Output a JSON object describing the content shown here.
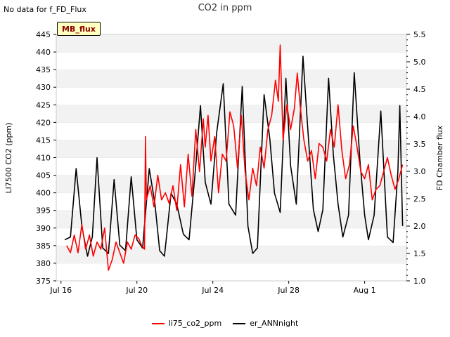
{
  "no_data_text": "No data for f_FD_Flux",
  "badge_label": "MB_flux",
  "chart_data": {
    "type": "line",
    "title": "CO2 in ppm",
    "ylabel_left": "LI7500 CO2 (ppm)",
    "ylabel_right": "FD Chamber flux",
    "ylim_left": [
      375,
      445
    ],
    "ylim_right": [
      1.0,
      5.5
    ],
    "xlim_days": [
      15.75,
      34.2
    ],
    "y_ticks_left": [
      375,
      380,
      385,
      390,
      395,
      400,
      405,
      410,
      415,
      420,
      425,
      430,
      435,
      440,
      445
    ],
    "y_ticks_right": [
      "1.0",
      "1.5",
      "2.0",
      "2.5",
      "3.0",
      "3.5",
      "4.0",
      "4.5",
      "5.0",
      "5.5"
    ],
    "x_ticks": [
      {
        "label": "Jul 16",
        "day": 16
      },
      {
        "label": "Jul 20",
        "day": 20
      },
      {
        "label": "Jul 24",
        "day": 24
      },
      {
        "label": "Jul 28",
        "day": 28
      },
      {
        "label": "Aug 1",
        "day": 32
      }
    ],
    "series": [
      {
        "name": "li75_co2_ppm",
        "color": "#ff0000",
        "points": [
          [
            16.3,
            385
          ],
          [
            16.5,
            383
          ],
          [
            16.7,
            388
          ],
          [
            16.9,
            383
          ],
          [
            17.1,
            391
          ],
          [
            17.3,
            384
          ],
          [
            17.5,
            388
          ],
          [
            17.7,
            382
          ],
          [
            17.9,
            386
          ],
          [
            18.1,
            384
          ],
          [
            18.3,
            390
          ],
          [
            18.5,
            378
          ],
          [
            18.7,
            381
          ],
          [
            18.9,
            386
          ],
          [
            19.1,
            383
          ],
          [
            19.3,
            380
          ],
          [
            19.5,
            386
          ],
          [
            19.7,
            384
          ],
          [
            19.9,
            388
          ],
          [
            20.1,
            387
          ],
          [
            20.25,
            385
          ],
          [
            20.4,
            384
          ],
          [
            20.45,
            416
          ],
          [
            20.5,
            398
          ],
          [
            20.7,
            402
          ],
          [
            20.9,
            396
          ],
          [
            21.1,
            405
          ],
          [
            21.3,
            398
          ],
          [
            21.5,
            400
          ],
          [
            21.7,
            397
          ],
          [
            21.9,
            402
          ],
          [
            22.1,
            395
          ],
          [
            22.3,
            408
          ],
          [
            22.5,
            396
          ],
          [
            22.7,
            411
          ],
          [
            22.9,
            399
          ],
          [
            23.1,
            418
          ],
          [
            23.3,
            406
          ],
          [
            23.5,
            421
          ],
          [
            23.6,
            413
          ],
          [
            23.75,
            422
          ],
          [
            23.9,
            409
          ],
          [
            24.1,
            416
          ],
          [
            24.3,
            400
          ],
          [
            24.5,
            411
          ],
          [
            24.7,
            409
          ],
          [
            24.9,
            423
          ],
          [
            25.1,
            419
          ],
          [
            25.3,
            407
          ],
          [
            25.5,
            422
          ],
          [
            25.7,
            406
          ],
          [
            25.9,
            398
          ],
          [
            26.1,
            407
          ],
          [
            26.3,
            402
          ],
          [
            26.5,
            413
          ],
          [
            26.7,
            407
          ],
          [
            26.9,
            418
          ],
          [
            27.1,
            422
          ],
          [
            27.3,
            432
          ],
          [
            27.45,
            426
          ],
          [
            27.55,
            442
          ],
          [
            27.7,
            415
          ],
          [
            27.9,
            425
          ],
          [
            28.1,
            418
          ],
          [
            28.3,
            424
          ],
          [
            28.45,
            434
          ],
          [
            28.6,
            425
          ],
          [
            28.8,
            415
          ],
          [
            29.0,
            409
          ],
          [
            29.2,
            412
          ],
          [
            29.4,
            404
          ],
          [
            29.6,
            414
          ],
          [
            29.8,
            413
          ],
          [
            30.0,
            409
          ],
          [
            30.2,
            418
          ],
          [
            30.4,
            413
          ],
          [
            30.6,
            425
          ],
          [
            30.8,
            412
          ],
          [
            31.0,
            404
          ],
          [
            31.2,
            408
          ],
          [
            31.4,
            419
          ],
          [
            31.6,
            413
          ],
          [
            31.8,
            406
          ],
          [
            32.0,
            404
          ],
          [
            32.2,
            408
          ],
          [
            32.4,
            398
          ],
          [
            32.6,
            401
          ],
          [
            32.8,
            402
          ],
          [
            33.0,
            406
          ],
          [
            33.2,
            410
          ],
          [
            33.4,
            405
          ],
          [
            33.6,
            401
          ],
          [
            33.8,
            404
          ],
          [
            34.0,
            408
          ]
        ]
      },
      {
        "name": "er_ANNnight",
        "color": "#000000",
        "points": [
          [
            16.2,
            1.75
          ],
          [
            16.5,
            1.8
          ],
          [
            16.8,
            3.05
          ],
          [
            17.1,
            2.0
          ],
          [
            17.4,
            1.45
          ],
          [
            17.65,
            1.8
          ],
          [
            17.9,
            3.25
          ],
          [
            18.2,
            1.6
          ],
          [
            18.5,
            1.5
          ],
          [
            18.8,
            2.85
          ],
          [
            19.1,
            1.65
          ],
          [
            19.4,
            1.55
          ],
          [
            19.7,
            2.9
          ],
          [
            20.0,
            1.75
          ],
          [
            20.3,
            1.6
          ],
          [
            20.65,
            3.05
          ],
          [
            20.95,
            2.4
          ],
          [
            21.2,
            1.55
          ],
          [
            21.45,
            1.45
          ],
          [
            21.8,
            2.6
          ],
          [
            22.1,
            2.4
          ],
          [
            22.45,
            1.85
          ],
          [
            22.75,
            1.75
          ],
          [
            23.1,
            3.1
          ],
          [
            23.35,
            4.2
          ],
          [
            23.6,
            2.8
          ],
          [
            23.9,
            2.4
          ],
          [
            24.2,
            3.7
          ],
          [
            24.55,
            4.6
          ],
          [
            24.85,
            2.4
          ],
          [
            25.2,
            2.2
          ],
          [
            25.55,
            4.55
          ],
          [
            25.85,
            2.0
          ],
          [
            26.1,
            1.5
          ],
          [
            26.35,
            1.6
          ],
          [
            26.7,
            4.4
          ],
          [
            27.0,
            3.6
          ],
          [
            27.25,
            2.6
          ],
          [
            27.55,
            2.25
          ],
          [
            27.85,
            4.7
          ],
          [
            28.1,
            3.1
          ],
          [
            28.4,
            2.4
          ],
          [
            28.75,
            5.1
          ],
          [
            29.0,
            3.8
          ],
          [
            29.3,
            2.3
          ],
          [
            29.55,
            1.9
          ],
          [
            29.8,
            2.3
          ],
          [
            30.1,
            4.7
          ],
          [
            30.35,
            3.3
          ],
          [
            30.6,
            2.4
          ],
          [
            30.85,
            1.8
          ],
          [
            31.15,
            2.2
          ],
          [
            31.45,
            4.8
          ],
          [
            31.75,
            3.2
          ],
          [
            32.0,
            2.2
          ],
          [
            32.2,
            1.75
          ],
          [
            32.5,
            2.2
          ],
          [
            32.85,
            4.1
          ],
          [
            33.2,
            1.8
          ],
          [
            33.5,
            1.7
          ],
          [
            33.75,
            3.0
          ],
          [
            33.85,
            4.2
          ],
          [
            34.0,
            2.0
          ]
        ]
      }
    ]
  }
}
